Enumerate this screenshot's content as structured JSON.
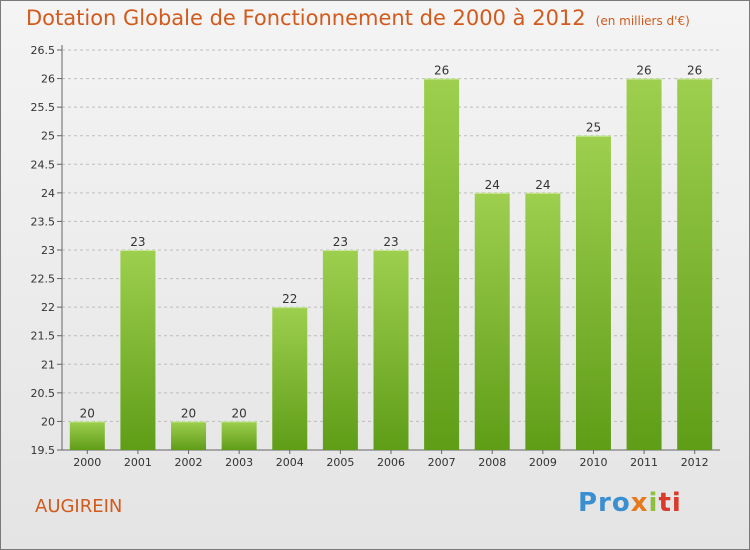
{
  "chart_data": {
    "type": "bar",
    "title": "Dotation Globale de Fonctionnement de 2000 à 2012",
    "subtitle": "(en milliers d'€)",
    "categories": [
      "2000",
      "2001",
      "2002",
      "2003",
      "2004",
      "2005",
      "2006",
      "2007",
      "2008",
      "2009",
      "2010",
      "2011",
      "2012"
    ],
    "values": [
      20,
      23,
      20,
      20,
      22,
      23,
      23,
      26,
      24,
      24,
      25,
      26,
      26
    ],
    "data_labels": [
      "20",
      "23",
      "20",
      "20",
      "22",
      "23",
      "23",
      "26",
      "24",
      "24",
      "25",
      "26",
      "26"
    ],
    "ylim": [
      19.5,
      26.5
    ],
    "yticks": [
      19.5,
      20,
      20.5,
      21,
      21.5,
      22,
      22.5,
      23,
      23.5,
      24,
      24.5,
      25,
      25.5,
      26,
      26.5
    ],
    "grid": true,
    "xlabel": "",
    "ylabel": "",
    "colors": {
      "bar_top": "#9ecf4f",
      "bar_bottom": "#5f9d17",
      "grid": "#bdbdbd",
      "title": "#d25a1c"
    }
  },
  "footer": {
    "place": "AUGIREIN",
    "logo": [
      "Pro",
      "x",
      "i",
      "ti"
    ]
  }
}
